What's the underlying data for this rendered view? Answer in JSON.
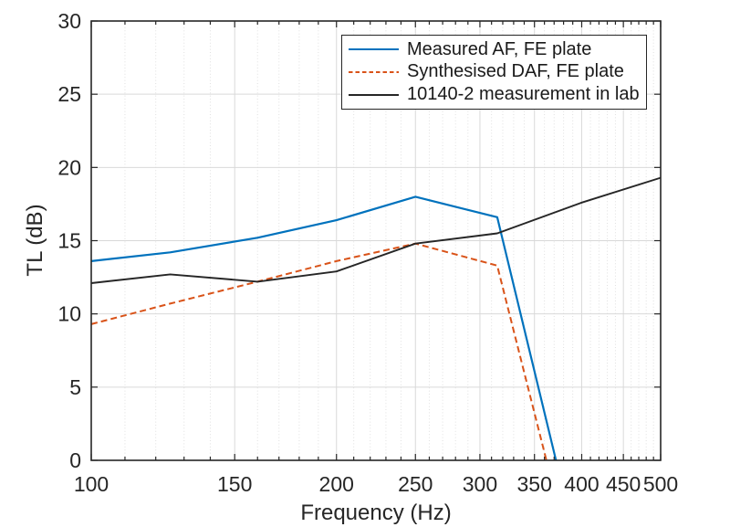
{
  "colors": {
    "background": "#ffffff",
    "axis": "#262626",
    "grid_major": "#d9d9d9",
    "grid_minor": "#e0e0e0",
    "text": "#262626"
  },
  "chart_data": {
    "type": "line",
    "title": "",
    "xlabel": "Frequency (Hz)",
    "ylabel": "TL (dB)",
    "x_scale": "log",
    "xlim": [
      100,
      500
    ],
    "ylim": [
      0,
      30
    ],
    "x_ticks": [
      100,
      150,
      200,
      250,
      300,
      350,
      400,
      450,
      500
    ],
    "x_minor_ticks": [
      110,
      120,
      130,
      140,
      160,
      170,
      180,
      190,
      210,
      220,
      230,
      240,
      260,
      270,
      280,
      290,
      310,
      320,
      330,
      340,
      360,
      370,
      380,
      390,
      410,
      420,
      430,
      440,
      460,
      470,
      480,
      490
    ],
    "y_ticks": [
      0,
      5,
      10,
      15,
      20,
      25,
      30
    ],
    "grid": "on",
    "minor_grid": "x only, dotted",
    "legend_position": "inside top-right, boxed",
    "series": [
      {
        "name": "Measured AF, FE plate",
        "color": "#0072BD",
        "line_style": "solid",
        "points": [
          [
            100,
            13.6
          ],
          [
            125,
            14.2
          ],
          [
            160,
            15.2
          ],
          [
            200,
            16.4
          ],
          [
            250,
            18.0
          ],
          [
            315,
            16.6
          ],
          [
            372,
            0
          ]
        ]
      },
      {
        "name": "Synthesised DAF, FE plate",
        "color": "#D95319",
        "line_style": "dashed",
        "points": [
          [
            100,
            9.3
          ],
          [
            125,
            10.7
          ],
          [
            160,
            12.2
          ],
          [
            200,
            13.6
          ],
          [
            250,
            14.8
          ],
          [
            315,
            13.3
          ],
          [
            362,
            0
          ]
        ]
      },
      {
        "name": "10140-2 measurement in lab",
        "color": "#262626",
        "line_style": "solid",
        "points": [
          [
            100,
            12.1
          ],
          [
            125,
            12.7
          ],
          [
            160,
            12.2
          ],
          [
            200,
            12.9
          ],
          [
            250,
            14.8
          ],
          [
            315,
            15.5
          ],
          [
            400,
            17.6
          ],
          [
            500,
            19.3
          ]
        ]
      }
    ]
  }
}
